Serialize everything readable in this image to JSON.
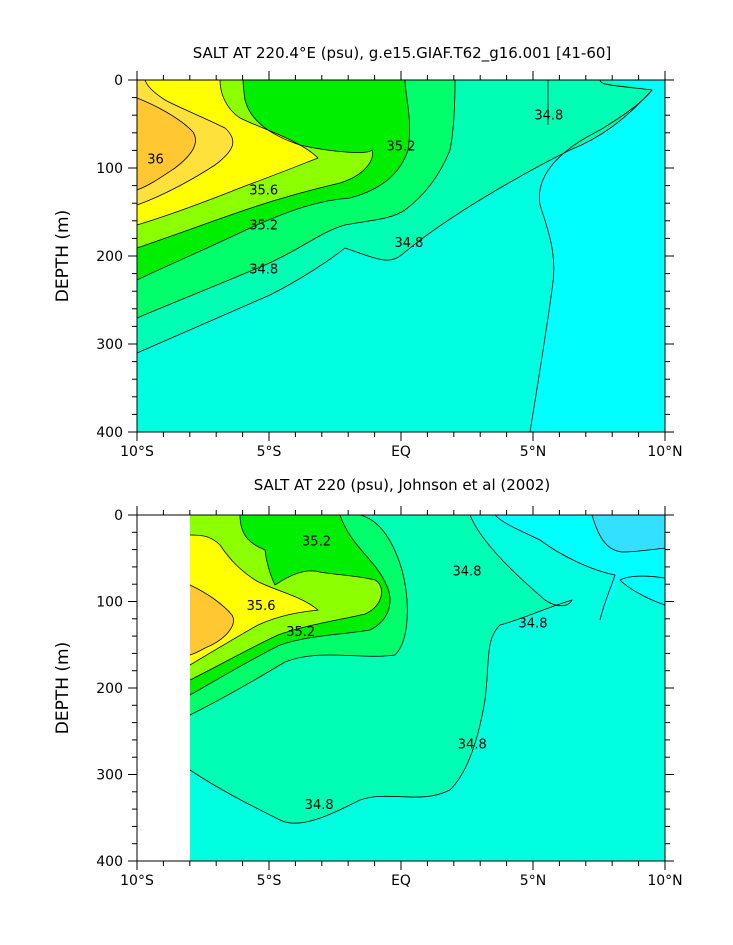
{
  "chart_data": [
    {
      "type": "heatmap",
      "subtype": "filled-contour",
      "title": "SALT AT 220.4°E (psu), g.e15.GIAF.T62_g16.001 [41-60]",
      "xlabel": "",
      "ylabel": "DEPTH (m)",
      "x_unit": "degrees latitude",
      "x_ticks": [
        -10,
        -5,
        0,
        5,
        10
      ],
      "x_tick_labels": [
        "10°S",
        "5°S",
        "EQ",
        "5°N",
        "10°N"
      ],
      "y_ticks": [
        0,
        100,
        200,
        300,
        400
      ],
      "y_tick_labels": [
        "0",
        "100",
        "200",
        "300",
        "400"
      ],
      "xlim": [
        -10,
        10
      ],
      "ylim": [
        400,
        0
      ],
      "y_inverted": true,
      "data_x_range": [
        -10,
        10
      ],
      "contour_levels": [
        34.6,
        34.8,
        35.0,
        35.2,
        35.4,
        35.6,
        35.8,
        36.0
      ],
      "contour_labels": [
        {
          "text": "36",
          "x": -9.3,
          "y": 95
        },
        {
          "text": "35.6",
          "x": -5.2,
          "y": 130
        },
        {
          "text": "35.2",
          "x": -5.2,
          "y": 170
        },
        {
          "text": "35.2",
          "x": 0,
          "y": 80
        },
        {
          "text": "34.8",
          "x": -5.2,
          "y": 220
        },
        {
          "text": "34.8",
          "x": 0.3,
          "y": 190
        },
        {
          "text": "34.8",
          "x": 5.6,
          "y": 45
        }
      ],
      "fill_colors": {
        "34.4": "#00ffff",
        "34.6": "#00ffe0",
        "34.8": "#00ffb4",
        "35.0": "#00ff6a",
        "35.2": "#00ee00",
        "35.4": "#8cff00",
        "35.6": "#ffff00",
        "35.8": "#ffe13c",
        "36.0": "#ffc832"
      },
      "grid": false,
      "legend": "none"
    },
    {
      "type": "heatmap",
      "subtype": "filled-contour",
      "title": "SALT AT 220 (psu), Johnson et al (2002)",
      "xlabel": "",
      "ylabel": "DEPTH (m)",
      "x_unit": "degrees latitude",
      "x_ticks": [
        -10,
        -5,
        0,
        5,
        10
      ],
      "x_tick_labels": [
        "10°S",
        "5°S",
        "EQ",
        "5°N",
        "10°N"
      ],
      "y_ticks": [
        0,
        100,
        200,
        300,
        400
      ],
      "y_tick_labels": [
        "0",
        "100",
        "200",
        "300",
        "400"
      ],
      "xlim": [
        -10,
        10
      ],
      "ylim": [
        400,
        0
      ],
      "y_inverted": true,
      "data_x_range": [
        -8,
        10
      ],
      "contour_levels": [
        34.6,
        34.8,
        35.0,
        35.2,
        35.4,
        35.6,
        35.8
      ],
      "contour_labels": [
        {
          "text": "35.2",
          "x": -3.2,
          "y": 35
        },
        {
          "text": "35.6",
          "x": -5.3,
          "y": 110
        },
        {
          "text": "35.2",
          "x": -3.8,
          "y": 140
        },
        {
          "text": "34.8",
          "x": 2.5,
          "y": 70
        },
        {
          "text": "34.8",
          "x": 5.0,
          "y": 130
        },
        {
          "text": "34.8",
          "x": 2.7,
          "y": 270
        },
        {
          "text": "34.8",
          "x": -3.1,
          "y": 340
        }
      ],
      "fill_colors": {
        "34.2": "#34e0ff",
        "34.4": "#00ffff",
        "34.6": "#00ffe0",
        "34.8": "#00ffb4",
        "35.0": "#00ff6a",
        "35.2": "#00ee00",
        "35.4": "#8cff00",
        "35.6": "#ffff00",
        "35.8": "#ffc832"
      },
      "grid": false,
      "legend": "none"
    }
  ]
}
